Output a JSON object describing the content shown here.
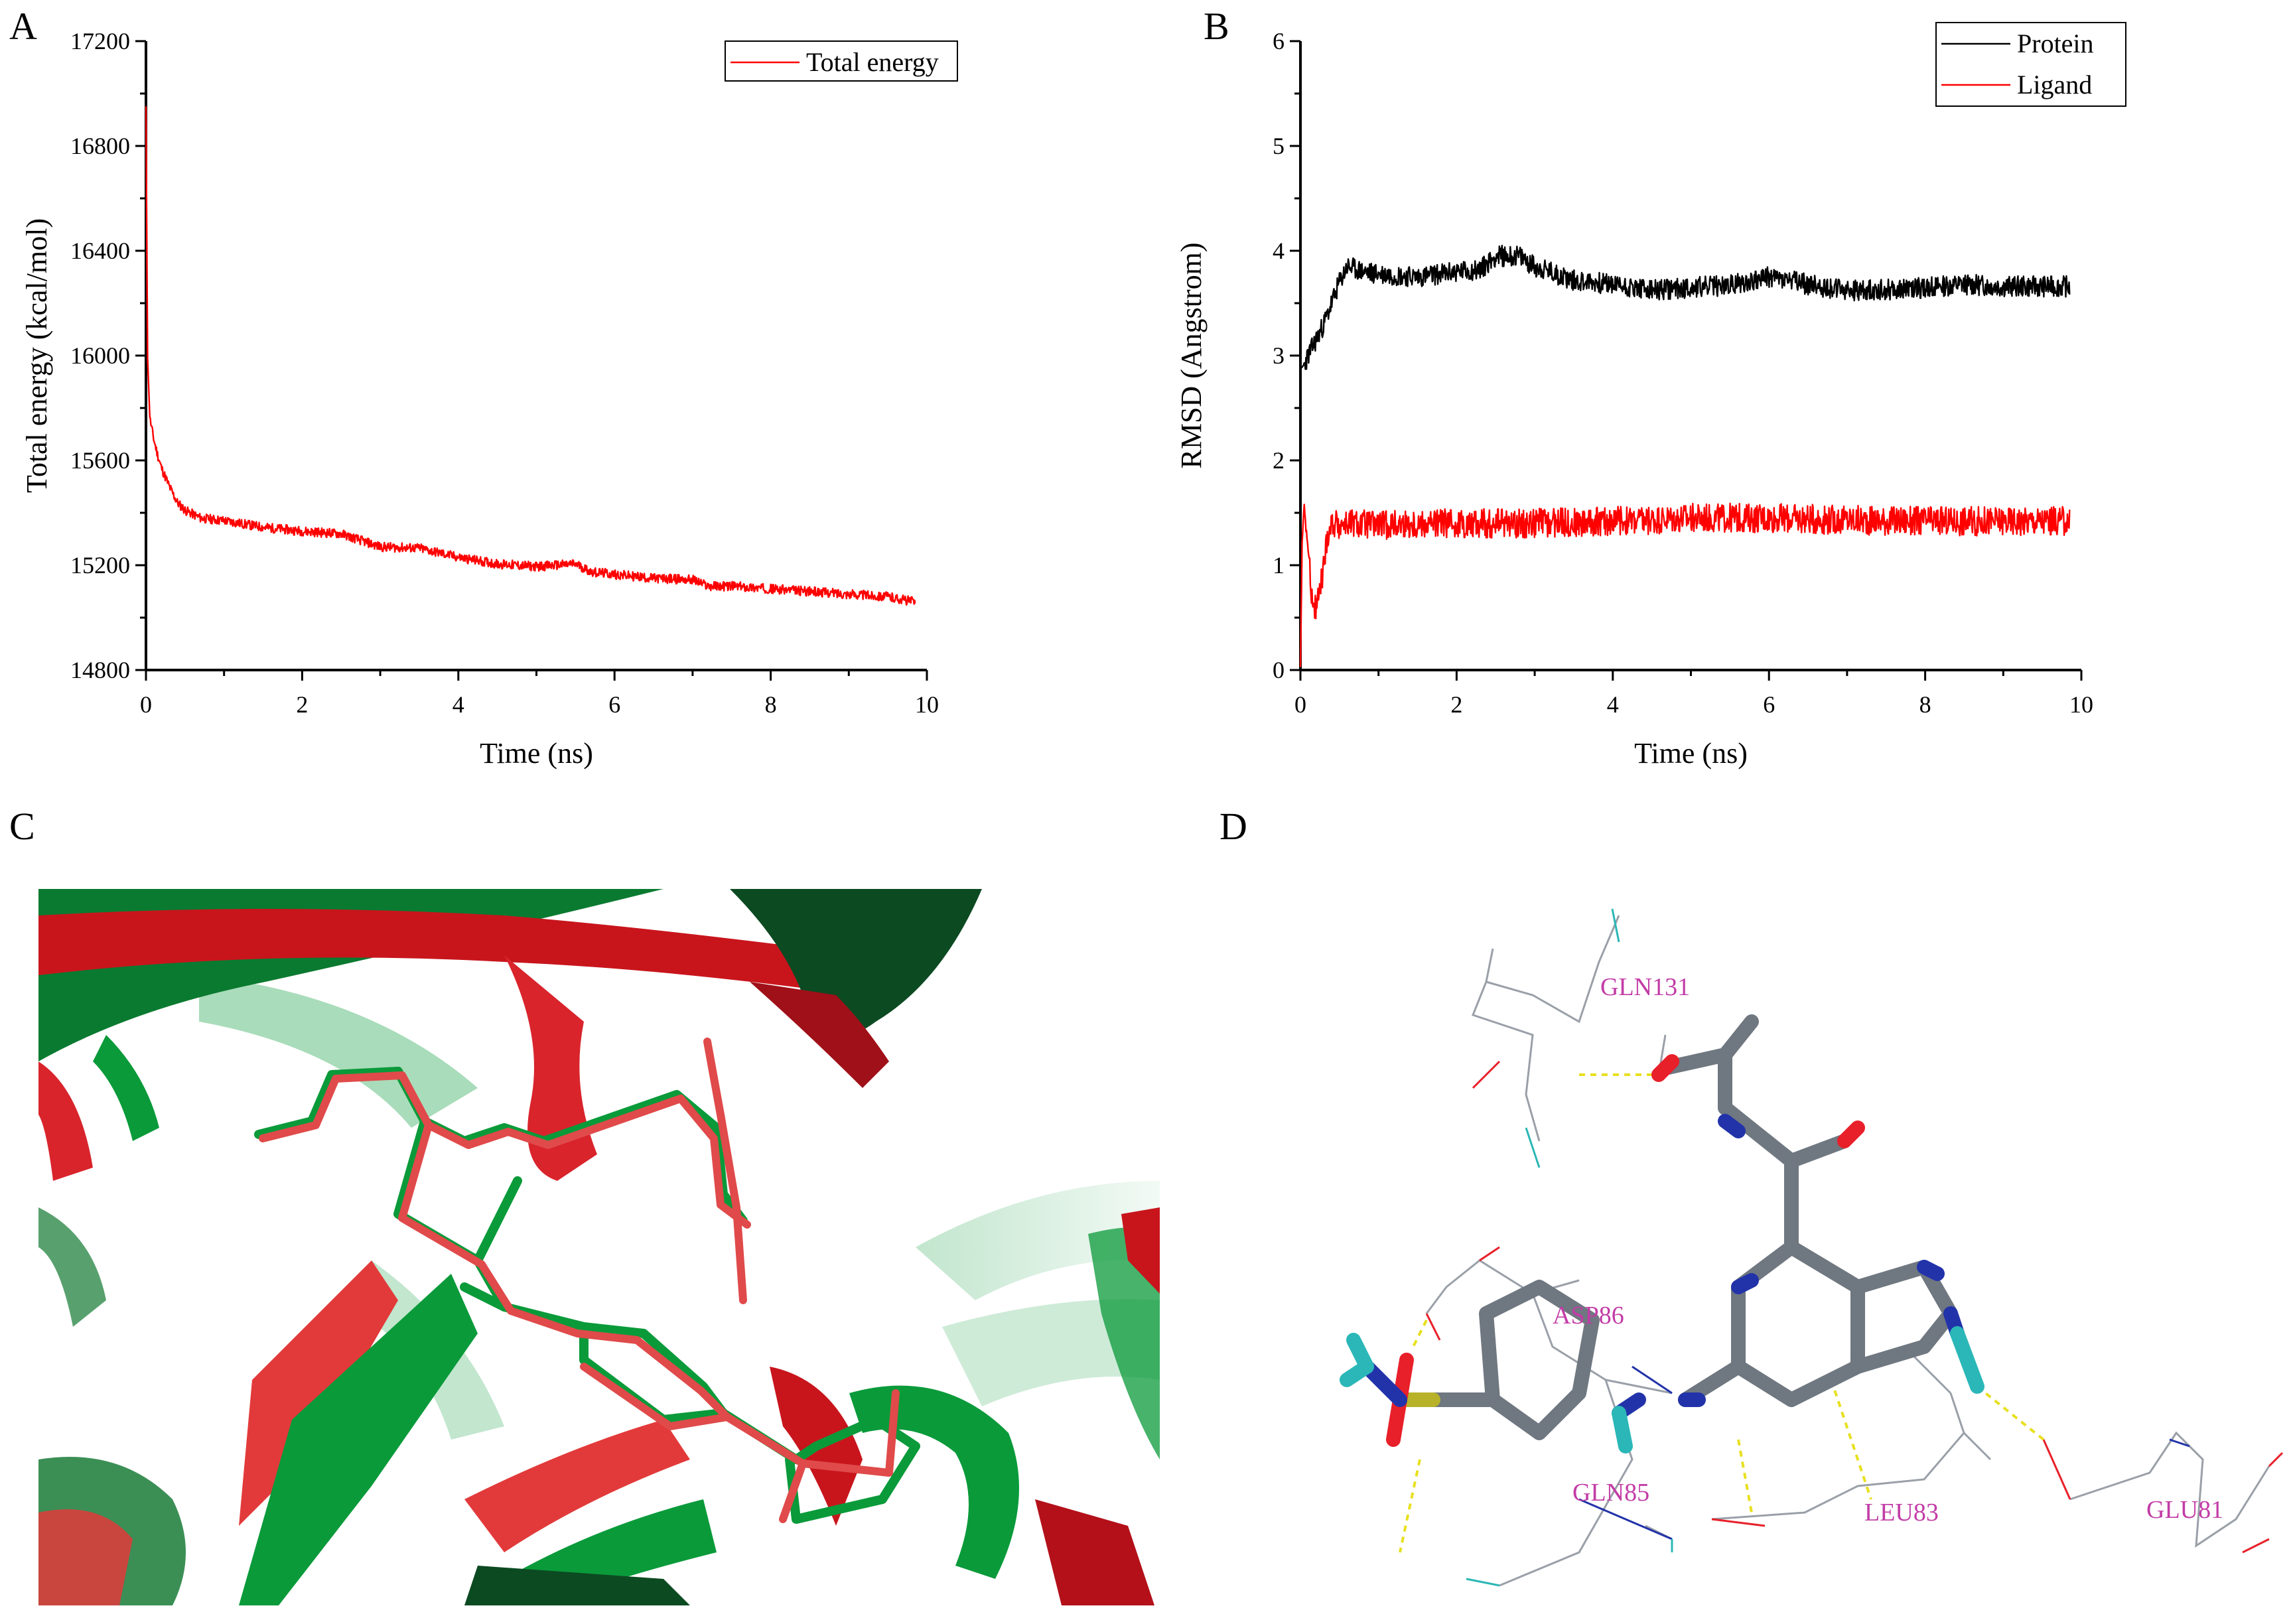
{
  "figure": {
    "panel_a_letter": "A",
    "panel_b_letter": "B",
    "panel_c_letter": "C",
    "panel_d_letter": "D"
  },
  "colors": {
    "red": "#ff0000",
    "black": "#000000",
    "green": "#0a9a3a",
    "dark_red": "#c8151c",
    "stick_gray": "#6f7780",
    "nitrogen": "#2233aa",
    "oxygen": "#e8202a",
    "sulfur": "#b7b22a",
    "hydrogen": "#2bb7b7",
    "label_magenta": "#c23ca6",
    "hbond": "#e8e020"
  },
  "chart_data": [
    {
      "panel": "A",
      "type": "line",
      "title": "",
      "xlabel": "Time (ns)",
      "ylabel": "Total energy (kcal/mol)",
      "xlim": [
        0,
        10
      ],
      "ylim": [
        14800,
        17200
      ],
      "x_ticks": [
        "0",
        "2",
        "4",
        "6",
        "8",
        "10"
      ],
      "y_ticks": [
        "14800",
        "15200",
        "15600",
        "16000",
        "16400",
        "16800",
        "17200"
      ],
      "legend_position": "top-right",
      "series": [
        {
          "name": "Total energy",
          "color": "#ff0000",
          "x": [
            0,
            0.02,
            0.05,
            0.1,
            0.15,
            0.2,
            0.3,
            0.4,
            0.5,
            0.7,
            1.0,
            1.5,
            2.0,
            2.5,
            2.8,
            3.0,
            3.5,
            4.0,
            4.5,
            5.0,
            5.5,
            5.7,
            6.0,
            6.5,
            7.0,
            7.2,
            7.5,
            8.0,
            8.5,
            9.0,
            9.5,
            9.85
          ],
          "values": [
            16950,
            16000,
            15760,
            15680,
            15620,
            15570,
            15500,
            15440,
            15410,
            15380,
            15370,
            15345,
            15330,
            15320,
            15290,
            15270,
            15265,
            15230,
            15205,
            15195,
            15205,
            15175,
            15165,
            15150,
            15145,
            15120,
            15120,
            15110,
            15100,
            15090,
            15080,
            15060
          ],
          "noise_amplitude": 18
        }
      ]
    },
    {
      "panel": "B",
      "type": "line",
      "title": "",
      "xlabel": "Time (ns)",
      "ylabel": "RMSD (Angstrom)",
      "xlim": [
        0,
        10
      ],
      "ylim": [
        0,
        6
      ],
      "x_ticks": [
        "0",
        "2",
        "4",
        "6",
        "8",
        "10"
      ],
      "y_ticks": [
        "0",
        "1",
        "2",
        "3",
        "4",
        "5",
        "6"
      ],
      "legend_position": "top-right",
      "series": [
        {
          "name": "Protein",
          "color": "#000000",
          "x": [
            0,
            0.1,
            0.2,
            0.3,
            0.4,
            0.5,
            0.6,
            0.8,
            1.0,
            1.5,
            2.0,
            2.3,
            2.5,
            2.8,
            3.0,
            3.5,
            4.0,
            4.5,
            5.0,
            5.5,
            6.0,
            6.5,
            7.0,
            7.5,
            8.0,
            8.5,
            9.0,
            9.5,
            9.85
          ],
          "values": [
            2.85,
            3.0,
            3.15,
            3.3,
            3.5,
            3.7,
            3.85,
            3.8,
            3.78,
            3.75,
            3.8,
            3.82,
            3.95,
            3.95,
            3.85,
            3.72,
            3.68,
            3.62,
            3.65,
            3.67,
            3.75,
            3.68,
            3.62,
            3.63,
            3.65,
            3.68,
            3.66,
            3.66,
            3.66
          ],
          "noise_amplitude": 0.1
        },
        {
          "name": "Ligand",
          "color": "#ff0000",
          "x": [
            0,
            0.02,
            0.05,
            0.1,
            0.15,
            0.2,
            0.25,
            0.3,
            0.35,
            0.4,
            1.0,
            2.0,
            3.0,
            4.0,
            5.0,
            6.0,
            7.0,
            8.0,
            9.0,
            9.85
          ],
          "values": [
            0.0,
            1.2,
            1.6,
            1.1,
            0.7,
            0.6,
            0.75,
            1.0,
            1.3,
            1.4,
            1.38,
            1.4,
            1.4,
            1.42,
            1.45,
            1.45,
            1.43,
            1.42,
            1.42,
            1.42
          ],
          "noise_amplitude": 0.14
        }
      ]
    }
  ],
  "panel_d": {
    "residue_labels": [
      "GLN131",
      "ASP86",
      "GLN85",
      "LEU83",
      "GLU81"
    ]
  }
}
